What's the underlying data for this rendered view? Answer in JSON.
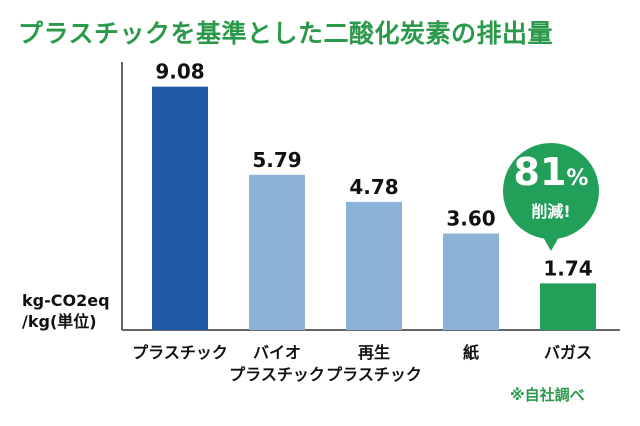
{
  "header": {
    "title": "プラスチックを基準とした二酸化炭素の排出量"
  },
  "axis": {
    "unit_line1": "kg-CO2eq",
    "unit_line2": "/kg(単位)"
  },
  "callout": {
    "percent": "81",
    "percent_sign": "%",
    "label": "削減!"
  },
  "footnote": "※自社調べ",
  "colors": {
    "title": "#2a9a4a",
    "plastic": "#1f5aa6",
    "others": "#8db2d8",
    "bagasse": "#22a05a"
  },
  "chart_data": {
    "type": "bar",
    "title": "プラスチックを基準とした二酸化炭素の排出量",
    "ylabel": "kg-CO2eq/kg(単位)",
    "ylim": [
      0,
      10
    ],
    "categories": [
      {
        "lines": [
          "プラスチック"
        ]
      },
      {
        "lines": [
          "バイオ",
          "プラスチック"
        ]
      },
      {
        "lines": [
          "再生",
          "プラスチック"
        ]
      },
      {
        "lines": [
          "紙"
        ]
      },
      {
        "lines": [
          "バガス"
        ]
      }
    ],
    "values": [
      9.08,
      5.79,
      4.78,
      3.6,
      1.74
    ],
    "value_labels": [
      "9.08",
      "5.79",
      "4.78",
      "3.60",
      "1.74"
    ],
    "bar_colors": [
      "#1f5aa6",
      "#8db2d8",
      "#8db2d8",
      "#8db2d8",
      "#22a05a"
    ]
  }
}
